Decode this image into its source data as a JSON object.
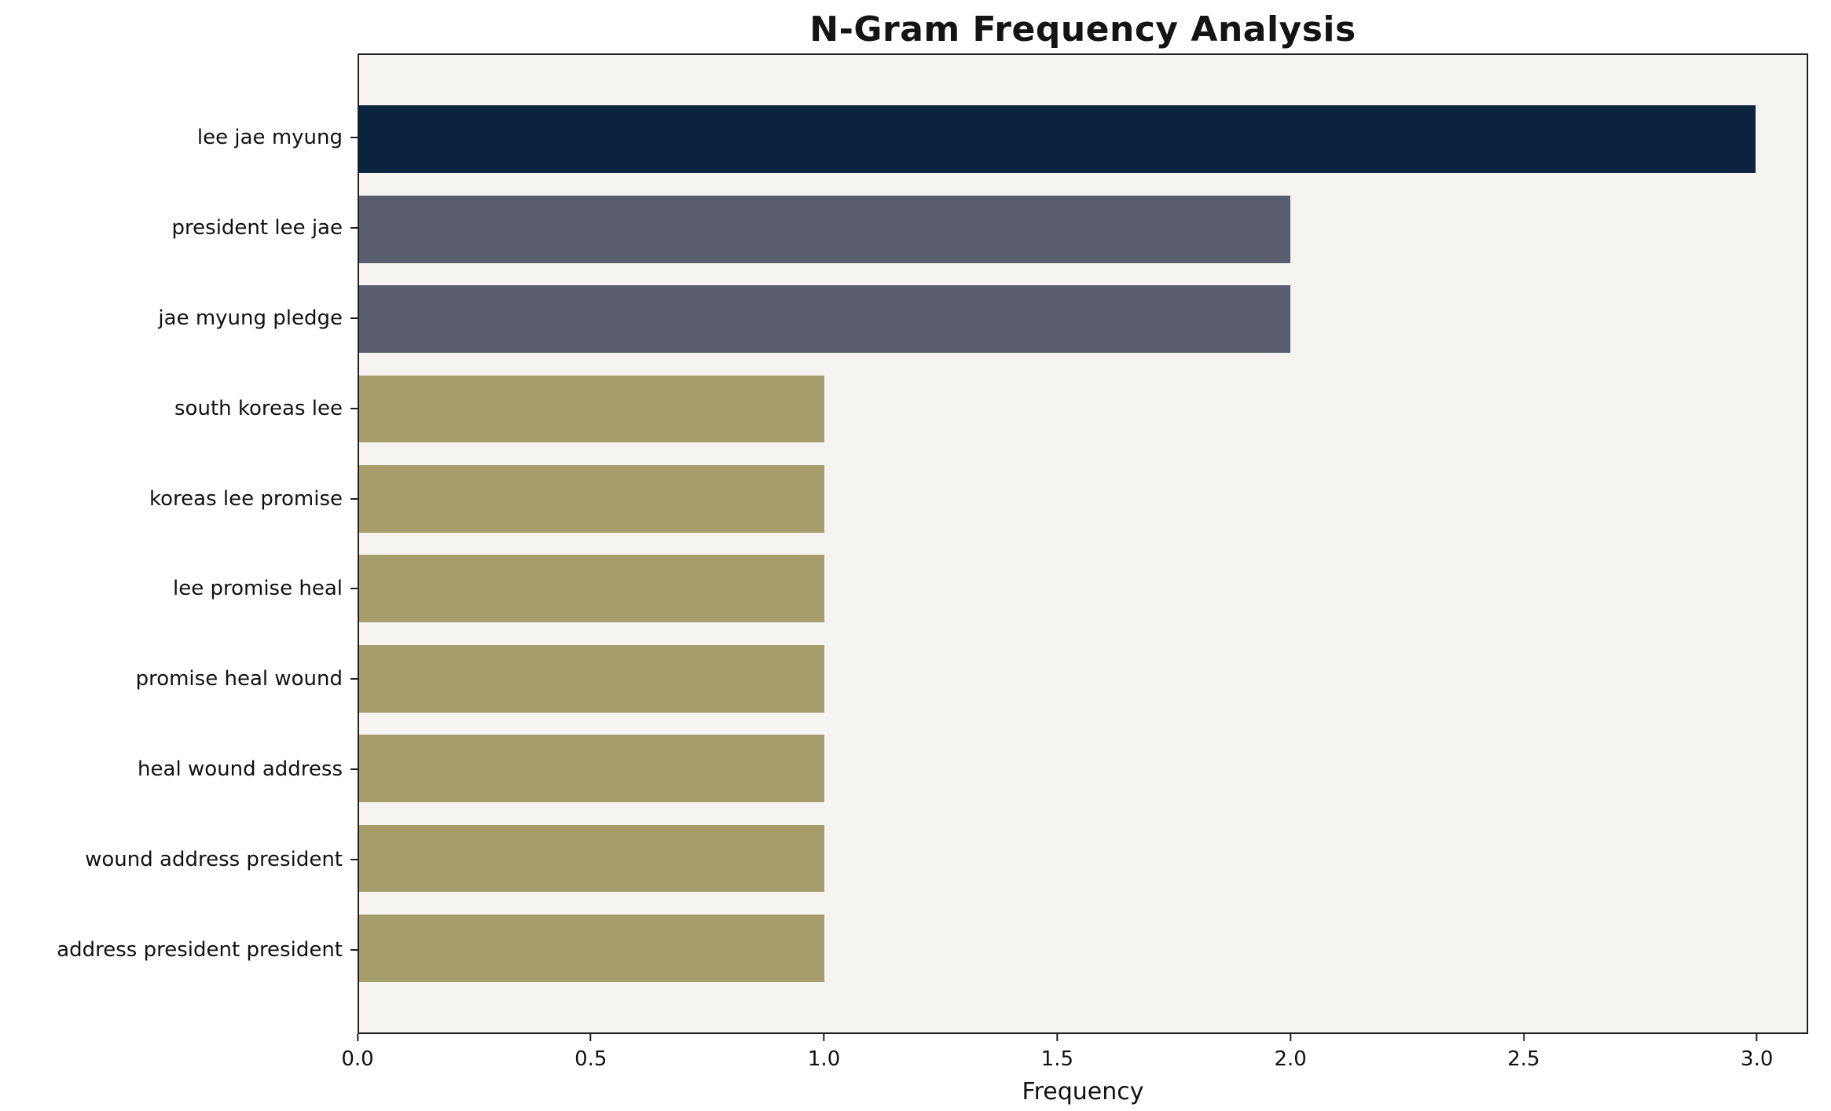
{
  "chart_data": {
    "type": "bar",
    "orientation": "horizontal",
    "title": "N-Gram Frequency Analysis",
    "xlabel": "Frequency",
    "ylabel": "",
    "categories": [
      "lee jae myung",
      "president lee jae",
      "jae myung pledge",
      "south koreas lee",
      "koreas lee promise",
      "lee promise heal",
      "promise heal wound",
      "heal wound address",
      "wound address president",
      "address president president"
    ],
    "values": [
      3,
      2,
      2,
      1,
      1,
      1,
      1,
      1,
      1,
      1
    ],
    "bar_colors": [
      "#0c2340",
      "#5a5e6e",
      "#5a5e6e",
      "#a69d6c",
      "#a69d6c",
      "#a69d6c",
      "#a69d6c",
      "#a69d6c",
      "#a69d6c",
      "#a69d6c"
    ],
    "xlim": [
      0,
      3.11
    ],
    "xticks": [
      0,
      0.5,
      1,
      1.5,
      2,
      2.5,
      3
    ],
    "xtick_labels": [
      "0.0",
      "0.5",
      "1.0",
      "1.5",
      "2.0",
      "2.5",
      "3.0"
    ],
    "plot_background": "#f5f4f0",
    "axis_color": "#1f1f1f",
    "text_color": "#111111",
    "grid": false,
    "legend": false
  }
}
